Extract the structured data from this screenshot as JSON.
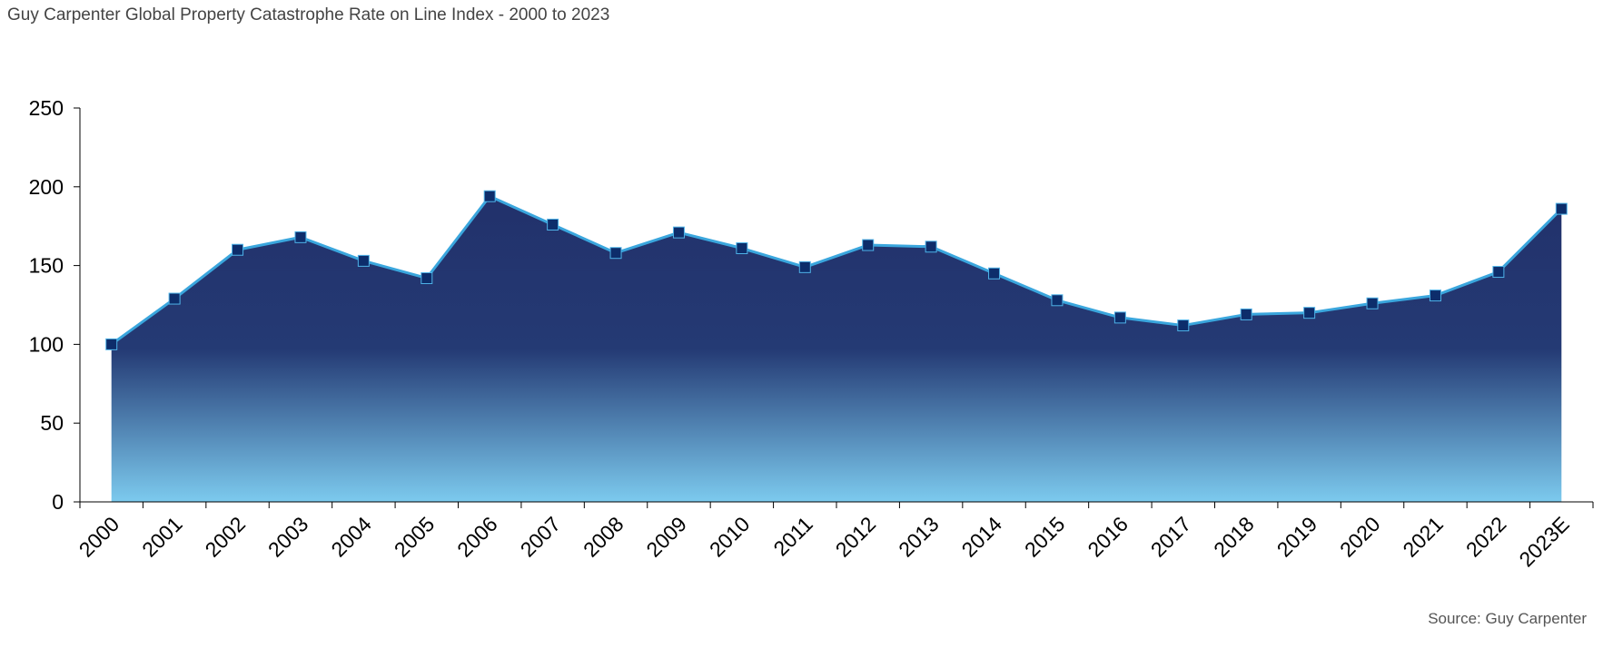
{
  "title": "Guy Carpenter Global Property Catastrophe Rate on Line Index - 2000 to 2023",
  "source": "Source: Guy Carpenter",
  "colors": {
    "line": "#3aa6dd",
    "marker_fill": "#0d2d6b",
    "marker_stroke": "#4fb3e8",
    "area_top": "#22316b",
    "area_mid": "#243a74",
    "area_bottom": "#7ccaee",
    "axis": "#000000"
  },
  "chart_data": {
    "type": "area",
    "title": "Guy Carpenter Global Property Catastrophe Rate on Line Index - 2000 to 2023",
    "xlabel": "",
    "ylabel": "",
    "ylim": [
      0,
      250
    ],
    "yticks": [
      0,
      50,
      100,
      150,
      200,
      250
    ],
    "grid": false,
    "legend": "none",
    "categories": [
      "2000",
      "2001",
      "2002",
      "2003",
      "2004",
      "2005",
      "2006",
      "2007",
      "2008",
      "2009",
      "2010",
      "2011",
      "2012",
      "2013",
      "2014",
      "2015",
      "2016",
      "2017",
      "2018",
      "2019",
      "2020",
      "2021",
      "2022",
      "2023E"
    ],
    "series": [
      {
        "values": [
          100,
          129,
          160,
          168,
          153,
          142,
          194,
          176,
          158,
          171,
          161,
          149,
          163,
          162,
          145,
          128,
          117,
          112,
          119,
          120,
          126,
          131,
          146,
          186
        ]
      }
    ]
  }
}
